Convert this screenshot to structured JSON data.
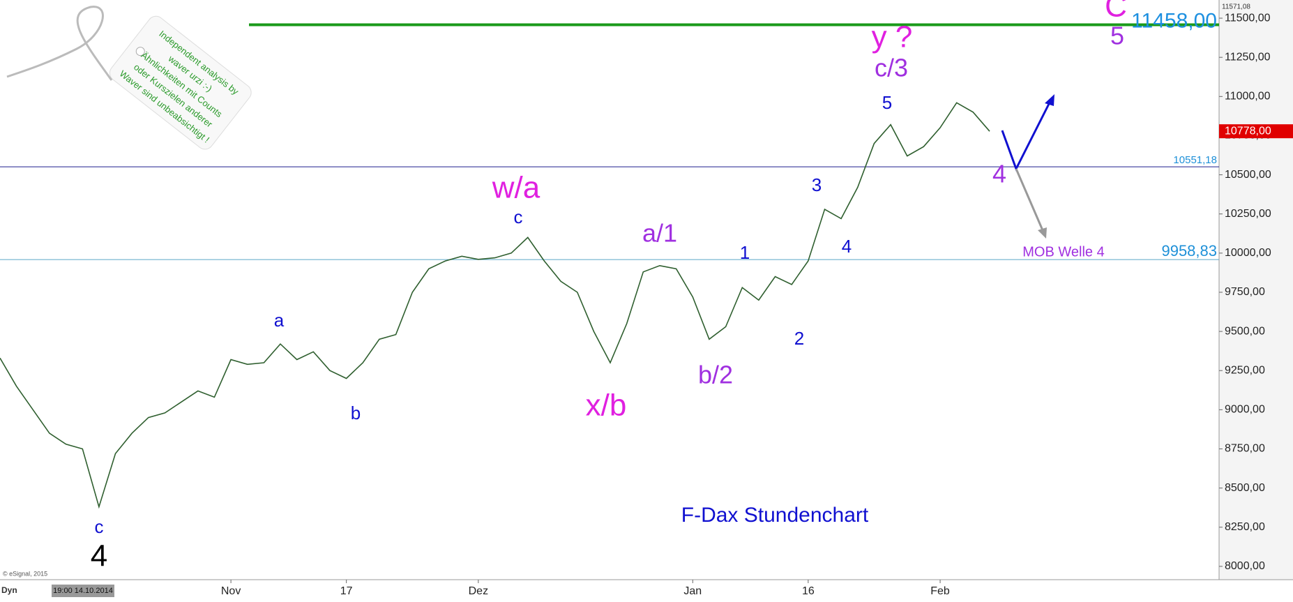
{
  "chart_data": {
    "type": "line",
    "title": "F-Dax Stundenchart",
    "categories": [
      null,
      null,
      null,
      null,
      null,
      null,
      null,
      null,
      null,
      null,
      null,
      null,
      null,
      null,
      "Nov",
      null,
      null,
      null,
      null,
      null,
      null,
      "17",
      null,
      null,
      null,
      null,
      null,
      null,
      null,
      "Dez",
      null,
      null,
      null,
      null,
      null,
      null,
      null,
      null,
      null,
      null,
      null,
      null,
      "Jan",
      null,
      null,
      null,
      null,
      null,
      null,
      "16",
      null,
      null,
      null,
      null,
      null,
      null,
      null,
      "Feb",
      null,
      null,
      null
    ],
    "values": [
      9330,
      9150,
      9000,
      8850,
      8780,
      8750,
      8380,
      8720,
      8850,
      8950,
      8980,
      9050,
      9120,
      9080,
      9320,
      9290,
      9300,
      9420,
      9320,
      9370,
      9250,
      9200,
      9300,
      9450,
      9480,
      9750,
      9900,
      9950,
      9980,
      9960,
      9970,
      10000,
      10100,
      9950,
      9820,
      9750,
      9500,
      9300,
      9550,
      9880,
      9920,
      9900,
      9720,
      9450,
      9530,
      9780,
      9700,
      9850,
      9800,
      9950,
      10280,
      10220,
      10420,
      10700,
      10820,
      10620,
      10680,
      10800,
      10960,
      10900,
      10778
    ],
    "color": "#2f5f2f",
    "ylim": [
      7915,
      11616
    ],
    "yticks": [
      {
        "value": 8000,
        "label": "8000,00"
      },
      {
        "value": 8250,
        "label": "8250,00"
      },
      {
        "value": 8500,
        "label": "8500,00"
      },
      {
        "value": 8750,
        "label": "8750,00"
      },
      {
        "value": 9000,
        "label": "9000,00"
      },
      {
        "value": 9250,
        "label": "9250,00"
      },
      {
        "value": 9500,
        "label": "9500,00"
      },
      {
        "value": 9750,
        "label": "9750,00"
      },
      {
        "value": 10000,
        "label": "10000,00"
      },
      {
        "value": 10250,
        "label": "10250,00"
      },
      {
        "value": 10500,
        "label": "10500,00"
      },
      {
        "value": 10750,
        "label": "10750,00"
      },
      {
        "value": 11000,
        "label": "11000,00"
      },
      {
        "value": 11250,
        "label": "11250,00"
      },
      {
        "value": 11500,
        "label": "11500,00"
      }
    ],
    "hlines": [
      {
        "value": 11458,
        "label": "11458,00",
        "color": "#1a9a1a"
      },
      {
        "value": 10551.18,
        "label": "10551,18",
        "color": "#1c1c8c"
      },
      {
        "value": 9958.83,
        "label": "9958,83",
        "color": "#5aa7c8"
      }
    ],
    "last": {
      "value": 10778,
      "label": "10778,00"
    },
    "top_label": {
      "value": 11571.08,
      "label": "11571,08"
    },
    "annotations": [
      "c",
      "4",
      "a",
      "b",
      "c",
      "w/a",
      "x/b",
      "a/1",
      "b/2",
      "1",
      "2",
      "3",
      "4",
      "5",
      "c/3",
      "y ?",
      "4",
      "MOB Welle 4",
      "C",
      "5"
    ],
    "tag_text": [
      "Independent analysis by",
      "waver urzi :-)",
      "Ähnlichkeiten mit Counts",
      "oder Kurszielen anderer",
      "Waver sind unbeabsichtigt !"
    ],
    "credit": "© eSignal, 2015",
    "dyn": "Dyn",
    "start_date": "19:00 14.10.2014"
  }
}
